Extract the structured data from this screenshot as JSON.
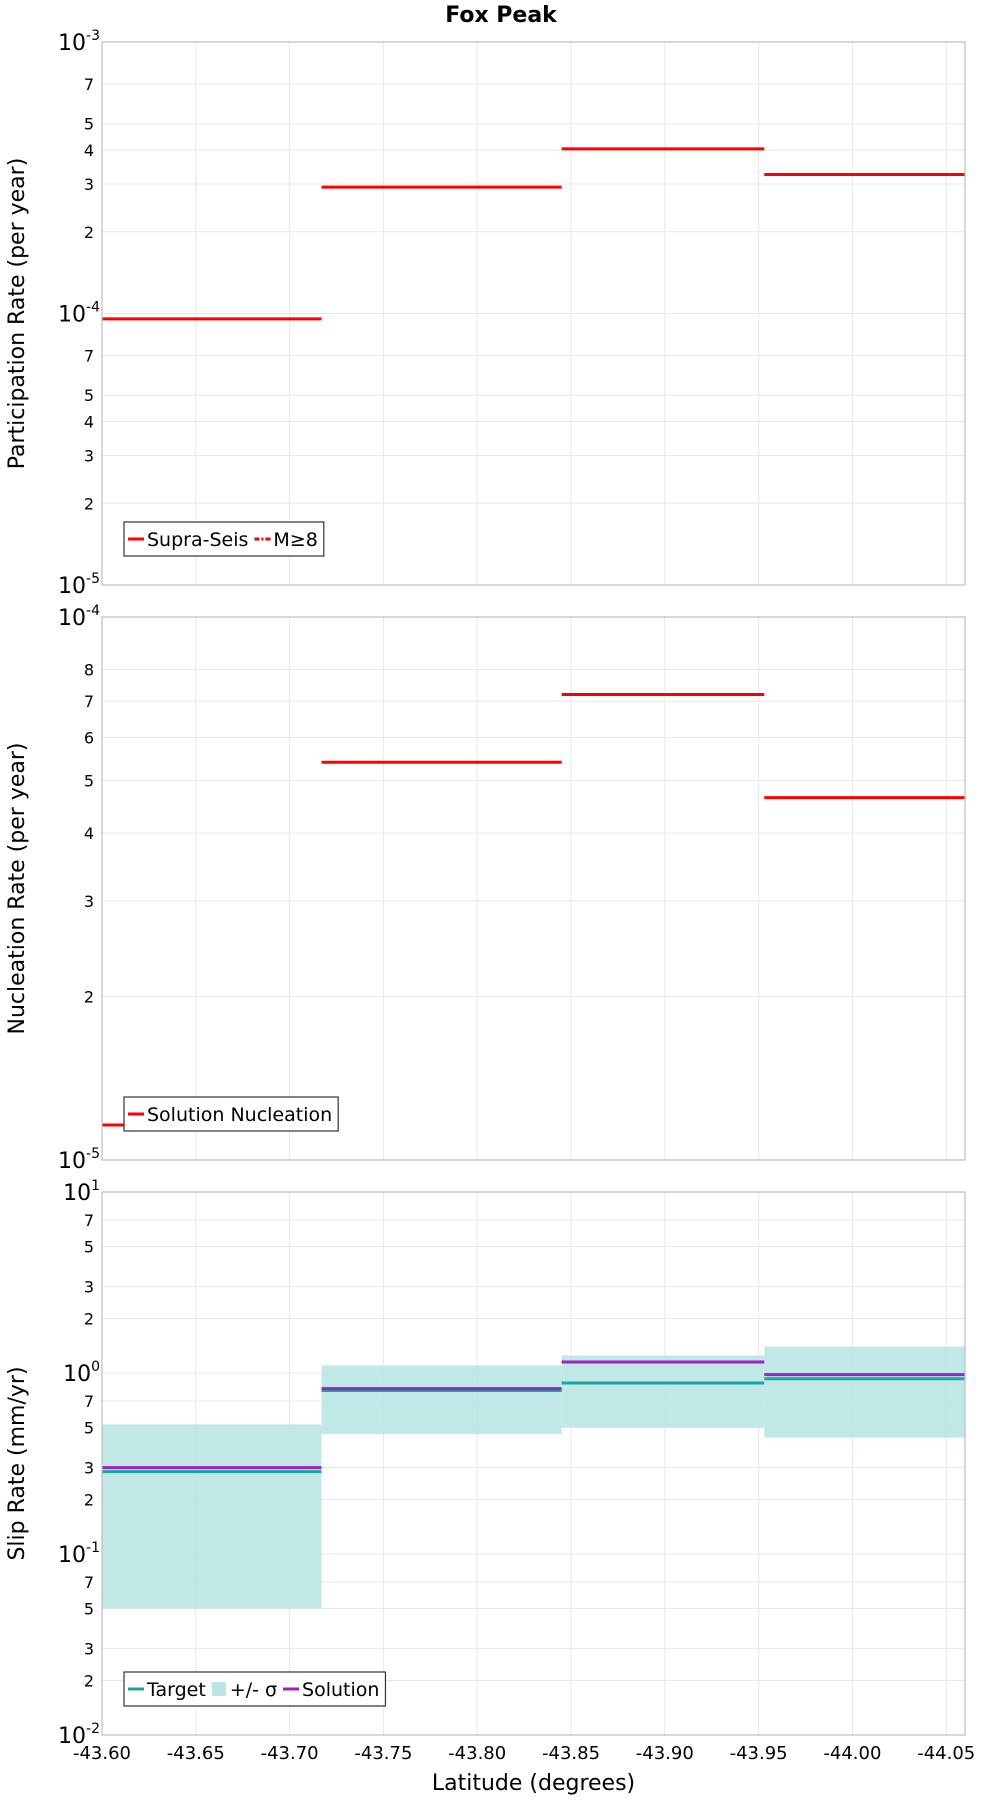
{
  "chart_data": [
    {
      "type": "line",
      "title": "Fox Peak",
      "ylabel": "Participation Rate (per year)",
      "xlabel": "",
      "yscale": "log",
      "ylim": [
        1e-05,
        0.001
      ],
      "xlim": [
        -43.6,
        -44.06
      ],
      "x_ticks": [
        -43.6,
        -43.65,
        -43.7,
        -43.75,
        -43.8,
        -43.85,
        -43.9,
        -43.95,
        -44.0,
        -44.05
      ],
      "y_major_ticks": [
        {
          "value": 1e-05,
          "mantissa": "10",
          "exp": "-5"
        },
        {
          "value": 0.0001,
          "mantissa": "10",
          "exp": "-4"
        },
        {
          "value": 0.001,
          "mantissa": "10",
          "exp": "-3"
        }
      ],
      "y_minor_ticks": [
        {
          "value": 2e-05,
          "label": "2"
        },
        {
          "value": 3e-05,
          "label": "3"
        },
        {
          "value": 4e-05,
          "label": "4"
        },
        {
          "value": 5e-05,
          "label": "5"
        },
        {
          "value": 7e-05,
          "label": "7"
        },
        {
          "value": 0.0002,
          "label": "2"
        },
        {
          "value": 0.0003,
          "label": "3"
        },
        {
          "value": 0.0004,
          "label": "4"
        },
        {
          "value": 0.0005,
          "label": "5"
        },
        {
          "value": 0.0007,
          "label": "7"
        }
      ],
      "step_series": [
        {
          "name": "Supra-Seis",
          "color": "#ff0000",
          "style": "solid",
          "segments": [
            {
              "x0": -43.6,
              "x1": -43.717,
              "y": 9.55e-05
            },
            {
              "x0": -43.717,
              "x1": -43.845,
              "y": 0.000292
            },
            {
              "x0": -43.845,
              "x1": -43.953,
              "y": 0.000404
            },
            {
              "x0": -43.953,
              "x1": -44.06,
              "y": 0.000325
            }
          ]
        },
        {
          "name": "M≥8",
          "color": "#ff0000",
          "style": "dashdot",
          "segments": []
        }
      ],
      "bands": [],
      "legend": [
        {
          "label": "Supra-Seis",
          "color": "#ff0000",
          "style": "solid"
        },
        {
          "label": "M≥8",
          "color": "#ff0000",
          "style": "dashdot"
        }
      ]
    },
    {
      "type": "line",
      "title": "",
      "ylabel": "Nucleation Rate (per year)",
      "xlabel": "",
      "yscale": "log",
      "ylim": [
        1e-05,
        0.0001
      ],
      "xlim": [
        -43.6,
        -44.06
      ],
      "x_ticks": [
        -43.6,
        -43.65,
        -43.7,
        -43.75,
        -43.8,
        -43.85,
        -43.9,
        -43.95,
        -44.0,
        -44.05
      ],
      "y_major_ticks": [
        {
          "value": 1e-05,
          "mantissa": "10",
          "exp": "-5"
        },
        {
          "value": 0.0001,
          "mantissa": "10",
          "exp": "-4"
        }
      ],
      "y_minor_ticks": [
        {
          "value": 2e-05,
          "label": "2"
        },
        {
          "value": 3e-05,
          "label": "3"
        },
        {
          "value": 4e-05,
          "label": "4"
        },
        {
          "value": 5e-05,
          "label": "5"
        },
        {
          "value": 6e-05,
          "label": "6"
        },
        {
          "value": 7e-05,
          "label": "7"
        },
        {
          "value": 8e-05,
          "label": "8"
        }
      ],
      "step_series": [
        {
          "name": "Solution Nucleation",
          "color": "#ff0000",
          "style": "solid",
          "segments": [
            {
              "x0": -43.6,
              "x1": -43.717,
              "y": 1.16e-05
            },
            {
              "x0": -43.717,
              "x1": -43.845,
              "y": 5.4e-05
            },
            {
              "x0": -43.845,
              "x1": -43.953,
              "y": 7.2e-05
            },
            {
              "x0": -43.953,
              "x1": -44.06,
              "y": 4.65e-05
            }
          ]
        }
      ],
      "bands": [],
      "legend": [
        {
          "label": "Solution Nucleation",
          "color": "#ff0000",
          "style": "solid"
        }
      ]
    },
    {
      "type": "line",
      "title": "",
      "ylabel": "Slip Rate (mm/yr)",
      "xlabel": "Latitude (degrees)",
      "yscale": "log",
      "ylim": [
        0.01,
        10
      ],
      "xlim": [
        -43.6,
        -44.06
      ],
      "x_ticks": [
        -43.6,
        -43.65,
        -43.7,
        -43.75,
        -43.8,
        -43.85,
        -43.9,
        -43.95,
        -44.0,
        -44.05
      ],
      "x_tick_labels": [
        "-43.60",
        "-43.65",
        "-43.70",
        "-43.75",
        "-43.80",
        "-43.85",
        "-43.90",
        "-43.95",
        "-44.00",
        "-44.05"
      ],
      "y_major_ticks": [
        {
          "value": 0.01,
          "mantissa": "10",
          "exp": "-2"
        },
        {
          "value": 0.1,
          "mantissa": "10",
          "exp": "-1"
        },
        {
          "value": 1,
          "mantissa": "10",
          "exp": "0"
        },
        {
          "value": 10,
          "mantissa": "10",
          "exp": "1"
        }
      ],
      "y_minor_ticks": [
        {
          "value": 0.02,
          "label": "2"
        },
        {
          "value": 0.03,
          "label": "3"
        },
        {
          "value": 0.05,
          "label": "5"
        },
        {
          "value": 0.07,
          "label": "7"
        },
        {
          "value": 0.2,
          "label": "2"
        },
        {
          "value": 0.3,
          "label": "3"
        },
        {
          "value": 0.5,
          "label": "5"
        },
        {
          "value": 0.7,
          "label": "7"
        },
        {
          "value": 2,
          "label": "2"
        },
        {
          "value": 3,
          "label": "3"
        },
        {
          "value": 5,
          "label": "5"
        },
        {
          "value": 7,
          "label": "7"
        }
      ],
      "step_series": [
        {
          "name": "Target",
          "color": "#1aa6a0",
          "style": "solid",
          "segments": [
            {
              "x0": -43.6,
              "x1": -43.717,
              "y": 0.285
            },
            {
              "x0": -43.717,
              "x1": -43.845,
              "y": 0.8
            },
            {
              "x0": -43.845,
              "x1": -43.953,
              "y": 0.88
            },
            {
              "x0": -43.953,
              "x1": -44.06,
              "y": 0.93
            }
          ]
        },
        {
          "name": "Solution",
          "color": "#a020c0",
          "style": "solid",
          "segments": [
            {
              "x0": -43.6,
              "x1": -43.717,
              "y": 0.3
            },
            {
              "x0": -43.717,
              "x1": -43.845,
              "y": 0.82
            },
            {
              "x0": -43.845,
              "x1": -43.953,
              "y": 1.15
            },
            {
              "x0": -43.953,
              "x1": -44.06,
              "y": 0.98
            }
          ]
        }
      ],
      "bands": [
        {
          "name": "+/- σ",
          "color": "#b8e6e4",
          "segments": [
            {
              "x0": -43.6,
              "x1": -43.717,
              "low": 0.05,
              "high": 0.52
            },
            {
              "x0": -43.717,
              "x1": -43.845,
              "low": 0.46,
              "high": 1.1
            },
            {
              "x0": -43.845,
              "x1": -43.953,
              "low": 0.5,
              "high": 1.25
            },
            {
              "x0": -43.953,
              "x1": -44.06,
              "low": 0.44,
              "high": 1.4
            }
          ]
        }
      ],
      "legend": [
        {
          "label": "Target",
          "color": "#1aa6a0",
          "style": "solid"
        },
        {
          "label": "+/- σ",
          "color": "#b8e6e4",
          "style": "band"
        },
        {
          "label": "Solution",
          "color": "#a020c0",
          "style": "solid"
        }
      ]
    }
  ]
}
